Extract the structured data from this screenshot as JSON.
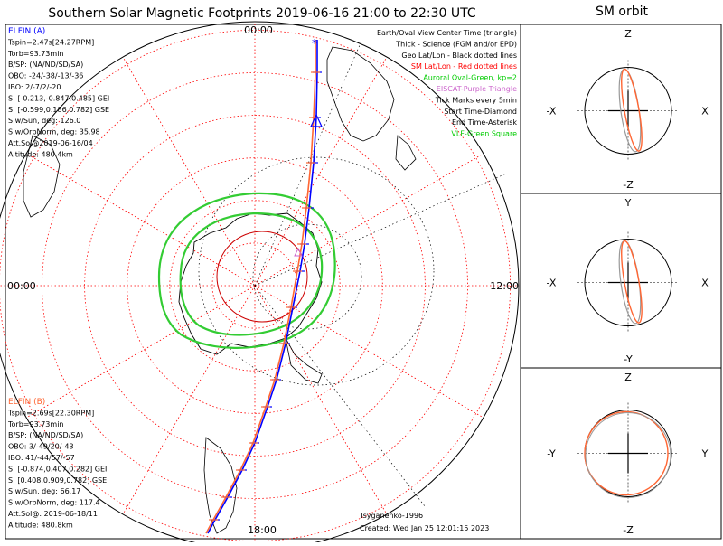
{
  "main_title": "Southern Solar Magnetic Footprints 2019-06-16 21:00 to 22:30 UTC",
  "orbit_title": "SM orbit",
  "legend": [
    {
      "text": "Earth/Oval View Center Time (triangle)",
      "color": "#000000"
    },
    {
      "text": "Thick - Science (FGM and/or EPD)",
      "color": "#000000"
    },
    {
      "text": "Geo Lat/Lon - Black dotted lines",
      "color": "#000000"
    },
    {
      "text": "SM Lat/Lon - Red dotted lines",
      "color": "#ff0000"
    },
    {
      "text": "Auroral Oval-Green, kp=2",
      "color": "#00cc00"
    },
    {
      "text": "EISCAT-Purple Triangle",
      "color": "#cc66cc"
    },
    {
      "text": "Tick Marks every 5min",
      "color": "#000000"
    },
    {
      "text": "Start Time-Diamond",
      "color": "#000000"
    },
    {
      "text": "End Time-Asterisk",
      "color": "#000000"
    },
    {
      "text": "VLF-Green Square",
      "color": "#00cc00"
    }
  ],
  "elfin_a": {
    "title": "ELFIN (A)",
    "color": "#0000ff",
    "lines": [
      "Tspin=2.47s[24.27RPM]",
      "Torb=93.73min",
      "B/SP: (NA/ND/SD/SA)",
      "OBO: -24/-38/-13/-36",
      "IBO: 2/-7/2/-20",
      "S: [-0.213,-0.847,0.485] GEI",
      "S: [-0.599,0.186,0.782] GSE",
      "S w/Sun, deg: 126.0",
      "S w/OrbNorm, deg: 35.98",
      "Att.Sol@2019-06-16/04",
      "Altitude: 480.4km"
    ]
  },
  "elfin_b": {
    "title": "ELFIN (B)",
    "color": "#ff6633",
    "lines": [
      "Tspin=2.69s[22.30RPM]",
      "Torb=93.73min",
      "B/SP: (NA/ND/SD/SA)",
      "OBO: 3/-49/20/-43",
      "IBO: 41/-44/57/-57",
      "S: [-0.874,0.407,0.282] GEI",
      "S: [0.408,0.909,0.782] GSE",
      "S w/Sun, deg: 66.17",
      "S w/OrbNorm, deg: 117.4",
      "Att.Sol@: 2019-06-18/11",
      "Altitude: 480.8km"
    ]
  },
  "polar_labels": {
    "top": "00:00",
    "left": "00:00",
    "right": "12:00",
    "bottom": "18:00"
  },
  "footer": {
    "author": "Tsyganenko-1996",
    "created": "Created: Wed Jan 25 12:01:15 2023"
  },
  "orbit_panels": [
    {
      "top": "Z",
      "bottom": "-Z",
      "left": "-X",
      "right": "X"
    },
    {
      "top": "Y",
      "bottom": "-Y",
      "left": "-X",
      "right": "X"
    },
    {
      "top": "Z",
      "bottom": "-Z",
      "left": "-Y",
      "right": "Y"
    }
  ],
  "chart_data": {
    "type": "polar-footprint",
    "projection": "southern hemisphere, SM coordinates",
    "sm_lat_rings_deg": [
      -80,
      -70,
      -60,
      -50,
      -40,
      -30
    ],
    "mlt_spokes_hours": [
      0,
      2,
      4,
      6,
      8,
      10,
      12,
      14,
      16,
      18,
      20,
      22
    ],
    "auroral_oval_kp": 2,
    "tick_interval_min": 5,
    "series": [
      {
        "name": "ELFIN (A)",
        "color": "#0000ff"
      },
      {
        "name": "ELFIN (B)",
        "color": "#ff6633"
      }
    ]
  }
}
